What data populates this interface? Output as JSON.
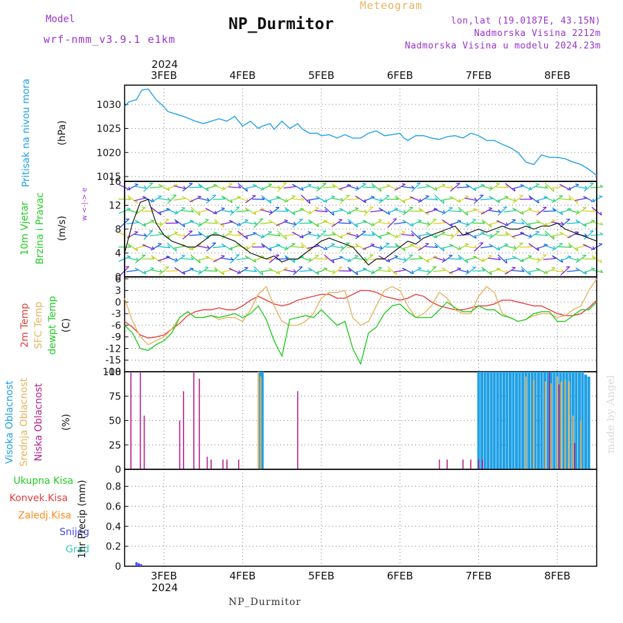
{
  "header": {
    "model_label": "Model",
    "model_name": "wrf-nmm_v3.9.1 e1km",
    "title": "NP_Durmitor",
    "subtitle": "Meteogram",
    "coords": "lon,lat (19.0187E, 43.15N)",
    "elevation": "Nadmorska Visina 2212m",
    "model_elevation": "Nadmorska Visina u modelu 2024.23m"
  },
  "footer": {
    "station": "NP_Durmitor"
  },
  "watermark": "made by Angel",
  "colors": {
    "pressure": "#1ea0e6",
    "temp2m": "#e63c3c",
    "sfc_temp": "#e6b35c",
    "dewpt": "#22cc22",
    "high_cloud": "#1ea0e6",
    "mid_cloud": "#e6b35c",
    "low_cloud": "#b4228c",
    "precip_total": "#22cc22",
    "precip_conv": "#e63c3c",
    "precip_frz": "#ff8c1a",
    "snow": "#4444ee",
    "hail": "#33ccbb"
  },
  "chart_data": [
    {
      "type": "line",
      "panel": "pressure",
      "ylabel": "Pritisak na nivou mora",
      "unit": "(hPa)",
      "yticks": [
        1015,
        1020,
        1025,
        1030
      ],
      "ylim": [
        1014,
        1034
      ],
      "x_dates": [
        "3FEB",
        "4FEB",
        "5FEB",
        "6FEB",
        "7FEB",
        "8FEB"
      ],
      "x_year": "2024",
      "xlim_days": [
        -0.5,
        5.5
      ],
      "series": [
        {
          "name": "Pritisak na nivou mora",
          "x": [
            -0.5,
            -0.45,
            -0.35,
            -0.28,
            -0.2,
            -0.1,
            0.0,
            0.05,
            0.15,
            0.25,
            0.4,
            0.5,
            0.6,
            0.7,
            0.8,
            0.9,
            1.0,
            1.1,
            1.2,
            1.25,
            1.35,
            1.4,
            1.5,
            1.6,
            1.7,
            1.75,
            1.85,
            1.95,
            2.0,
            2.1,
            2.2,
            2.3,
            2.4,
            2.5,
            2.6,
            2.7,
            2.8,
            2.9,
            3.0,
            3.05,
            3.1,
            3.2,
            3.3,
            3.4,
            3.5,
            3.6,
            3.7,
            3.8,
            3.9,
            4.0,
            4.1,
            4.2,
            4.3,
            4.4,
            4.5,
            4.6,
            4.7,
            4.8,
            4.9,
            5.0,
            5.1,
            5.2,
            5.3,
            5.4,
            5.5
          ],
          "y": [
            1029.5,
            1030.5,
            1031,
            1033,
            1033.2,
            1031,
            1029.5,
            1028.5,
            1028,
            1027.5,
            1026.5,
            1026,
            1026.5,
            1027,
            1026.5,
            1027.5,
            1025.5,
            1026.5,
            1025,
            1025.5,
            1026,
            1024.8,
            1026.5,
            1025,
            1026,
            1025,
            1024,
            1024,
            1023.5,
            1023.7,
            1023,
            1023.7,
            1023,
            1023,
            1024,
            1024.5,
            1023.5,
            1023.7,
            1024,
            1023,
            1022.5,
            1023.5,
            1023.5,
            1023,
            1022.7,
            1023.3,
            1023.5,
            1023,
            1024,
            1023.5,
            1022.5,
            1022.5,
            1021.7,
            1021,
            1020,
            1018,
            1017.5,
            1019.5,
            1019,
            1019,
            1018.7,
            1018,
            1017.5,
            1016.5,
            1015.2
          ]
        }
      ]
    },
    {
      "type": "barbs",
      "panel": "wind",
      "ylabel": "10m Vjetar Brzina i Pravac",
      "unit": "(m/s)",
      "direction_legend": "w <-|-> e",
      "yticks": [
        0,
        4,
        8,
        12,
        16
      ],
      "ylim": [
        0,
        16
      ],
      "series": [
        {
          "name": "10m Vjetar",
          "x": [
            -0.5,
            -0.4,
            -0.3,
            -0.2,
            -0.1,
            0.0,
            0.1,
            0.2,
            0.3,
            0.4,
            0.5,
            0.6,
            0.7,
            0.8,
            0.9,
            1.0,
            1.1,
            1.2,
            1.3,
            1.4,
            1.5,
            1.6,
            1.7,
            1.8,
            1.9,
            2.0,
            2.1,
            2.2,
            2.3,
            2.4,
            2.5,
            2.6,
            2.7,
            2.8,
            2.9,
            3.0,
            3.1,
            3.2,
            3.3,
            3.4,
            3.5,
            3.6,
            3.7,
            3.8,
            3.9,
            4.0,
            4.1,
            4.2,
            4.3,
            4.4,
            4.5,
            4.6,
            4.7,
            4.8,
            4.9,
            5.0,
            5.1,
            5.2,
            5.3,
            5.4,
            5.5
          ],
          "y": [
            4,
            9,
            12.5,
            13,
            9,
            7,
            6,
            5.5,
            5,
            5,
            6,
            7,
            7,
            6.5,
            6,
            5,
            4,
            3.5,
            3,
            3.5,
            2.5,
            3,
            3,
            4,
            5,
            6,
            6.5,
            6,
            5.5,
            5,
            3.5,
            2,
            3,
            3,
            4,
            5,
            6,
            5.5,
            6.5,
            7,
            7.5,
            8,
            8.5,
            7,
            7.5,
            8,
            7.5,
            8,
            8.5,
            8,
            8,
            8.5,
            8,
            8.5,
            8.5,
            9,
            8,
            7.5,
            7,
            6.5,
            6
          ]
        }
      ]
    },
    {
      "type": "line",
      "panel": "temperature",
      "ylabels": [
        "2m Temp",
        "SFC Temp",
        "dewpt Temp"
      ],
      "unit": "(C)",
      "yticks": [
        -18,
        -15,
        -12,
        -9,
        -6,
        -3,
        0,
        3,
        6
      ],
      "ylim": [
        -18,
        6.5
      ],
      "series": [
        {
          "name": "2m Temp",
          "x": [
            -0.5,
            -0.4,
            -0.3,
            -0.2,
            -0.1,
            0.0,
            0.1,
            0.2,
            0.3,
            0.4,
            0.5,
            0.6,
            0.7,
            0.8,
            0.9,
            1.0,
            1.1,
            1.2,
            1.3,
            1.4,
            1.5,
            1.6,
            1.7,
            1.8,
            1.9,
            2.0,
            2.1,
            2.2,
            2.3,
            2.4,
            2.5,
            2.6,
            2.7,
            2.8,
            2.9,
            3.0,
            3.1,
            3.2,
            3.3,
            3.4,
            3.5,
            3.6,
            3.7,
            3.8,
            3.9,
            4.0,
            4.1,
            4.2,
            4.3,
            4.4,
            4.5,
            4.6,
            4.7,
            4.8,
            4.9,
            5.0,
            5.1,
            5.2,
            5.3,
            5.4,
            5.5
          ],
          "y": [
            -5,
            -6.5,
            -8.5,
            -9.3,
            -9,
            -8.5,
            -7,
            -5.5,
            -3.5,
            -2.5,
            -2,
            -2,
            -1.5,
            -2,
            -2,
            -1,
            0.5,
            1.5,
            0.5,
            -0.5,
            -1,
            -0.5,
            0.5,
            1,
            1.5,
            2,
            2,
            1,
            1,
            2,
            3,
            3,
            2.5,
            1.5,
            1,
            0.5,
            1,
            2,
            1.5,
            0,
            -1,
            -1.5,
            -2,
            -2,
            -1.5,
            -1,
            -1,
            -0.5,
            0.5,
            0.5,
            0,
            -0.5,
            -1,
            -1,
            -2,
            -3,
            -3.5,
            -3.5,
            -3,
            -1.5,
            0.5
          ]
        },
        {
          "name": "SFC Temp",
          "x": [
            -0.5,
            -0.4,
            -0.3,
            -0.2,
            -0.1,
            0.0,
            0.1,
            0.2,
            0.3,
            0.4,
            0.5,
            0.6,
            0.7,
            0.8,
            0.9,
            1.0,
            1.1,
            1.2,
            1.3,
            1.4,
            1.5,
            1.6,
            1.7,
            1.8,
            1.9,
            2.0,
            2.1,
            2.2,
            2.3,
            2.4,
            2.5,
            2.6,
            2.7,
            2.8,
            2.9,
            3.0,
            3.1,
            3.2,
            3.3,
            3.4,
            3.5,
            3.6,
            3.7,
            3.8,
            3.9,
            4.0,
            4.1,
            4.2,
            4.3,
            4.4,
            4.5,
            4.6,
            4.7,
            4.8,
            4.9,
            5.0,
            5.1,
            5.2,
            5.3,
            5.4,
            5.5
          ],
          "y": [
            1,
            -5,
            -9,
            -11,
            -10,
            -9,
            -7,
            -4,
            -2.5,
            -4,
            -4,
            -3.5,
            -4.5,
            -4,
            -4,
            -5,
            -2,
            2,
            4,
            -1,
            -5,
            -6,
            -6,
            -5,
            -3,
            1,
            2.5,
            2.5,
            3,
            -4,
            -6,
            -5,
            -1,
            3,
            4,
            3,
            -1,
            -4,
            -3,
            -1,
            2.5,
            1,
            -2,
            -3,
            -3,
            1.5,
            4,
            2.5,
            -3,
            -4,
            -5,
            -4.5,
            -3.5,
            -3,
            -3,
            -4,
            -3.5,
            -2,
            -1,
            3,
            6
          ]
        },
        {
          "name": "dewpt Temp",
          "x": [
            -0.5,
            -0.4,
            -0.3,
            -0.2,
            -0.1,
            0.0,
            0.1,
            0.2,
            0.3,
            0.4,
            0.5,
            0.6,
            0.7,
            0.8,
            0.9,
            1.0,
            1.1,
            1.2,
            1.3,
            1.4,
            1.5,
            1.6,
            1.7,
            1.8,
            1.9,
            2.0,
            2.1,
            2.2,
            2.3,
            2.4,
            2.5,
            2.6,
            2.7,
            2.8,
            2.9,
            3.0,
            3.1,
            3.2,
            3.3,
            3.4,
            3.5,
            3.6,
            3.7,
            3.8,
            3.9,
            4.0,
            4.1,
            4.2,
            4.3,
            4.4,
            4.5,
            4.6,
            4.7,
            4.8,
            4.9,
            5.0,
            5.1,
            5.2,
            5.3,
            5.4,
            5.5
          ],
          "y": [
            -6,
            -8,
            -12,
            -12.5,
            -11,
            -10,
            -8,
            -4,
            -2.5,
            -4,
            -4,
            -3.5,
            -4,
            -3.5,
            -3,
            -4,
            -3,
            -1,
            -4.5,
            -10,
            -14,
            -4.5,
            -4,
            -3.5,
            -4,
            -2,
            -4,
            -6,
            -5,
            -12,
            -16,
            -8,
            -6.5,
            -3,
            -1,
            -0.5,
            -2.5,
            -4,
            -4,
            -4,
            -2,
            0,
            -1.5,
            -2.5,
            -2.5,
            -1,
            -2,
            -2,
            -3.5,
            -4,
            -5,
            -4.5,
            -3,
            -2.5,
            -2.5,
            -5,
            -5,
            -3.5,
            -2,
            -2,
            0
          ]
        }
      ]
    },
    {
      "type": "bar",
      "panel": "clouds",
      "ylabels": [
        "Visoka Oblacnost",
        "Srednja Oblacnost",
        "Niska Oblacnost"
      ],
      "unit": "(%)",
      "yticks": [
        0,
        25,
        50,
        75,
        100
      ],
      "ylim": [
        0,
        100
      ],
      "series": [
        {
          "name": "Visoka Oblacnost",
          "x": [
            1.22,
            1.25,
            4.0,
            4.04,
            4.08,
            4.12,
            4.16,
            4.2,
            4.24,
            4.28,
            4.32,
            4.36,
            4.4,
            4.44,
            4.48,
            4.52,
            4.56,
            4.6,
            4.64,
            4.68,
            4.72,
            4.76,
            4.8,
            4.84,
            4.88,
            4.92,
            4.96,
            5.0,
            5.04,
            5.08,
            5.12,
            5.16,
            5.2,
            5.24,
            5.28,
            5.32,
            5.36,
            5.4
          ],
          "y": [
            100,
            100,
            100,
            100,
            100,
            100,
            100,
            100,
            100,
            100,
            100,
            100,
            100,
            100,
            100,
            100,
            100,
            100,
            100,
            100,
            100,
            100,
            100,
            100,
            100,
            100,
            100,
            100,
            100,
            100,
            100,
            100,
            100,
            100,
            100,
            100,
            97,
            95
          ]
        },
        {
          "name": "Srednja Oblacnost",
          "x": [
            1.2,
            1.23,
            4.6,
            4.7,
            4.85,
            4.92,
            5.0,
            5.05,
            5.1,
            5.15,
            5.2,
            5.3
          ],
          "y": [
            100,
            95,
            95,
            92,
            90,
            88,
            95,
            90,
            92,
            90,
            55,
            50
          ]
        },
        {
          "name": "Niska Oblacnost",
          "x": [
            -0.42,
            -0.3,
            -0.25,
            0.2,
            0.25,
            0.38,
            0.45,
            0.55,
            0.6,
            0.75,
            0.8,
            0.95,
            1.7,
            3.5,
            3.6,
            3.8,
            3.9,
            4.0,
            4.05,
            4.9,
            5.02,
            5.22
          ],
          "y": [
            100,
            100,
            55,
            50,
            80,
            100,
            93,
            13,
            10,
            10,
            10,
            10,
            80,
            10,
            10,
            10,
            10,
            10,
            10,
            100,
            87,
            27
          ]
        }
      ]
    },
    {
      "type": "bar",
      "panel": "precip",
      "ylabels": [
        "Ukupna Kisa",
        "Konvek.Kisa",
        "Zaledj.Kisa",
        "Snijeg",
        "Grad"
      ],
      "unit": "1hr Precip (mm)",
      "yticks": [
        0,
        0.2,
        0.4,
        0.6,
        0.8
      ],
      "ylim": [
        0,
        0.97
      ],
      "series": [
        {
          "name": "Ukupna Kisa",
          "x": [],
          "y": []
        },
        {
          "name": "Konvek.Kisa",
          "x": [],
          "y": []
        },
        {
          "name": "Zaledj.Kisa",
          "x": [],
          "y": []
        },
        {
          "name": "Snijeg",
          "x": [
            -0.35,
            -0.32,
            -0.29
          ],
          "y": [
            0.04,
            0.03,
            0.02
          ]
        },
        {
          "name": "Grad",
          "x": [],
          "y": []
        }
      ]
    }
  ]
}
